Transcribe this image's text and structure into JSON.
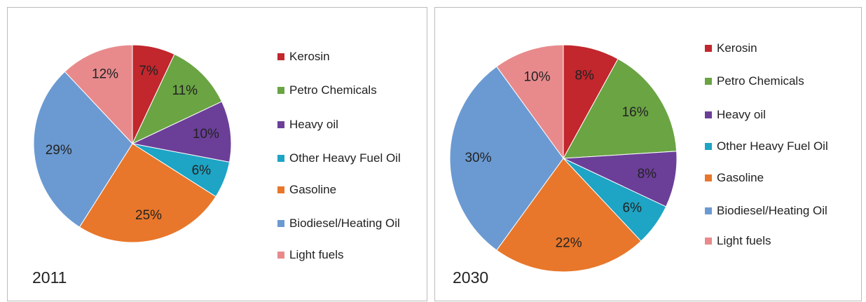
{
  "chart_data": [
    {
      "type": "pie",
      "title": "2011",
      "categories": [
        "Kerosin",
        "Petro Chemicals",
        "Heavy oil",
        "Other Heavy Fuel Oil",
        "Gasoline",
        "Biodiesel/Heating Oil",
        "Light fuels"
      ],
      "values": [
        7,
        11,
        10,
        6,
        25,
        29,
        12
      ],
      "value_labels": [
        "7%",
        "11%",
        "10%",
        "6%",
        "25%",
        "29%",
        "12%"
      ],
      "colors": [
        "#c1272d",
        "#6aa443",
        "#6b3f98",
        "#1ea4c4",
        "#e8772b",
        "#6b9ad2",
        "#e88a8c"
      ]
    },
    {
      "type": "pie",
      "title": "2030",
      "categories": [
        "Kerosin",
        "Petro Chemicals",
        "Heavy oil",
        "Other Heavy Fuel Oil",
        "Gasoline",
        "Biodiesel/Heating Oil",
        "Light fuels"
      ],
      "values": [
        8,
        16,
        8,
        6,
        22,
        30,
        10
      ],
      "value_labels": [
        "8%",
        "16%",
        "8%",
        "6%",
        "22%",
        "30%",
        "10%"
      ],
      "colors": [
        "#c1272d",
        "#6aa443",
        "#6b3f98",
        "#1ea4c4",
        "#e8772b",
        "#6b9ad2",
        "#e88a8c"
      ]
    }
  ]
}
